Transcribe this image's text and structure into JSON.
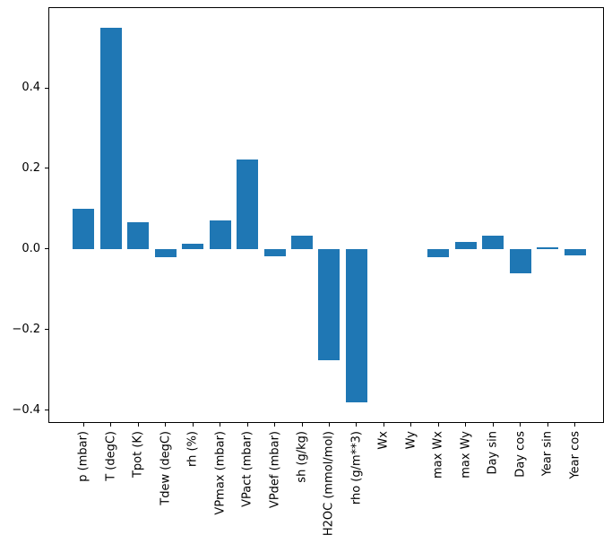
{
  "figure": {
    "background": "#ffffff",
    "text_color": "#000000",
    "spine_color": "#000000"
  },
  "chart_data": {
    "type": "bar",
    "title": "",
    "xlabel": "",
    "ylabel": "",
    "grid": false,
    "legend": null,
    "bar_color": "#1f77b4",
    "xtick_rotation": 90,
    "categories": [
      "p (mbar)",
      "T (degC)",
      "Tpot (K)",
      "Tdew (degC)",
      "rh (%)",
      "VPmax (mbar)",
      "VPact (mbar)",
      "VPdef (mbar)",
      "sh (g/kg)",
      "H2OC (mmol/mol)",
      "rho (g/m**3)",
      "Wx",
      "Wy",
      "max Wx",
      "max Wy",
      "Day sin",
      "Day cos",
      "Year sin",
      "Year cos"
    ],
    "values": [
      0.1,
      0.55,
      0.066,
      -0.021,
      0.012,
      0.071,
      0.221,
      -0.019,
      0.034,
      -0.276,
      -0.382,
      0.0,
      0.0,
      -0.021,
      0.018,
      0.034,
      -0.06,
      0.004,
      -0.016
    ],
    "ylim": [
      -0.43,
      0.598
    ],
    "yticks": [
      {
        "value": 0.4,
        "label": "0.4"
      },
      {
        "value": 0.2,
        "label": "0.2"
      },
      {
        "value": 0.0,
        "label": "0.0"
      },
      {
        "value": -0.2,
        "label": "−0.2"
      },
      {
        "value": -0.4,
        "label": "−0.4"
      }
    ]
  }
}
